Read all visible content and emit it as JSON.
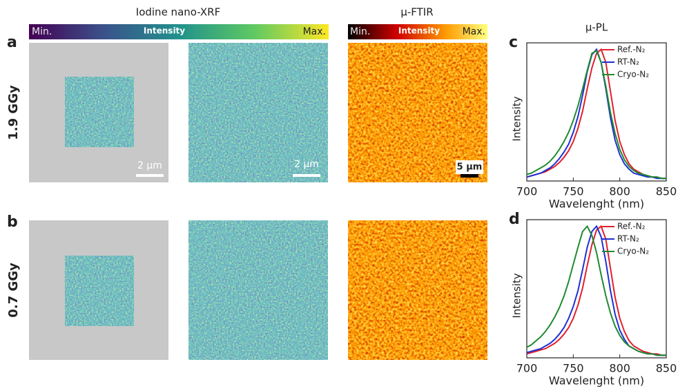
{
  "figure": {
    "xrf_title": "Iodine nano-XRF",
    "xrf_colorbar": {
      "min": "Min.",
      "label": "Intensity",
      "max": "Max."
    },
    "ftir_title": "μ-FTIR",
    "ftir_colorbar": {
      "min": "Min.",
      "label": "Intensity",
      "max": "Max."
    },
    "panels": [
      "a",
      "b"
    ],
    "doses": [
      "1.9 GGy",
      "0.7 GGy"
    ],
    "scale_bars": [
      "2 μm",
      "2 μm",
      "5 μm"
    ]
  },
  "chart_data": [
    {
      "type": "line",
      "panel": "c",
      "title": "μ-PL",
      "xlabel": "Wavelenght (nm)",
      "ylabel": "Intensity",
      "x": [
        700,
        705,
        710,
        715,
        720,
        725,
        730,
        735,
        740,
        745,
        750,
        755,
        760,
        765,
        770,
        775,
        780,
        785,
        790,
        795,
        800,
        805,
        810,
        815,
        820,
        825,
        830,
        835,
        840,
        845,
        850
      ],
      "xlim": [
        700,
        850
      ],
      "xticks": [
        700,
        750,
        800,
        850
      ],
      "ylim": [
        0,
        1.05
      ],
      "series": [
        {
          "name": "Ref.-N₂",
          "color": "#e0202a",
          "values": [
            0.03,
            0.04,
            0.05,
            0.06,
            0.07,
            0.09,
            0.11,
            0.14,
            0.18,
            0.23,
            0.3,
            0.4,
            0.53,
            0.7,
            0.86,
            0.97,
            1.0,
            0.9,
            0.68,
            0.46,
            0.3,
            0.2,
            0.13,
            0.09,
            0.07,
            0.05,
            0.04,
            0.03,
            0.03,
            0.02,
            0.02
          ]
        },
        {
          "name": "RT-N₂",
          "color": "#1f2fd6",
          "values": [
            0.03,
            0.04,
            0.05,
            0.06,
            0.08,
            0.1,
            0.13,
            0.17,
            0.22,
            0.28,
            0.37,
            0.49,
            0.65,
            0.83,
            0.96,
            1.0,
            0.9,
            0.7,
            0.48,
            0.31,
            0.2,
            0.13,
            0.09,
            0.06,
            0.05,
            0.04,
            0.03,
            0.03,
            0.02,
            0.02,
            0.02
          ]
        },
        {
          "name": "Cryo-N₂",
          "color": "#1f8a2e",
          "values": [
            0.05,
            0.06,
            0.08,
            0.1,
            0.12,
            0.15,
            0.19,
            0.24,
            0.3,
            0.37,
            0.46,
            0.57,
            0.7,
            0.84,
            0.97,
            0.99,
            0.9,
            0.72,
            0.52,
            0.36,
            0.24,
            0.16,
            0.11,
            0.08,
            0.06,
            0.05,
            0.04,
            0.03,
            0.03,
            0.02,
            0.02
          ]
        }
      ],
      "legend": "upper right"
    },
    {
      "type": "line",
      "panel": "d",
      "xlabel": "Wavelenght (nm)",
      "ylabel": "Intensity",
      "x": [
        700,
        705,
        710,
        715,
        720,
        725,
        730,
        735,
        740,
        745,
        750,
        755,
        760,
        765,
        770,
        775,
        780,
        785,
        790,
        795,
        800,
        805,
        810,
        815,
        820,
        825,
        830,
        835,
        840,
        845,
        850
      ],
      "xlim": [
        700,
        850
      ],
      "xticks": [
        700,
        750,
        800,
        850
      ],
      "ylim": [
        0,
        1.05
      ],
      "series": [
        {
          "name": "Ref.-N₂",
          "color": "#e0202a",
          "values": [
            0.03,
            0.04,
            0.05,
            0.06,
            0.07,
            0.09,
            0.11,
            0.14,
            0.18,
            0.23,
            0.3,
            0.4,
            0.53,
            0.7,
            0.86,
            0.97,
            1.0,
            0.9,
            0.68,
            0.46,
            0.3,
            0.2,
            0.13,
            0.09,
            0.07,
            0.05,
            0.04,
            0.03,
            0.03,
            0.02,
            0.02
          ]
        },
        {
          "name": "RT-N₂",
          "color": "#1f2fd6",
          "values": [
            0.04,
            0.05,
            0.06,
            0.07,
            0.09,
            0.11,
            0.14,
            0.18,
            0.23,
            0.3,
            0.39,
            0.51,
            0.67,
            0.84,
            0.96,
            1.0,
            0.92,
            0.73,
            0.51,
            0.33,
            0.21,
            0.14,
            0.09,
            0.07,
            0.05,
            0.04,
            0.03,
            0.03,
            0.02,
            0.02,
            0.02
          ]
        },
        {
          "name": "Cryo-N₂",
          "color": "#1f8a2e",
          "values": [
            0.08,
            0.1,
            0.13,
            0.16,
            0.2,
            0.25,
            0.31,
            0.38,
            0.47,
            0.58,
            0.71,
            0.84,
            0.96,
            1.0,
            0.93,
            0.8,
            0.63,
            0.47,
            0.34,
            0.24,
            0.17,
            0.12,
            0.09,
            0.07,
            0.05,
            0.04,
            0.03,
            0.03,
            0.02,
            0.02,
            0.02
          ]
        }
      ],
      "legend": "upper right"
    }
  ]
}
